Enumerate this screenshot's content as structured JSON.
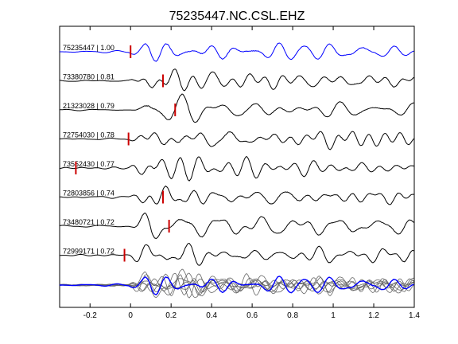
{
  "chart_data": {
    "type": "line",
    "title": "75235447.NC.CSL.EHZ",
    "xlabel": "",
    "ylabel": "",
    "xlim": [
      -0.35,
      1.4
    ],
    "xticks": [
      -0.2,
      0,
      0.2,
      0.4,
      0.6,
      0.8,
      1,
      1.2,
      1.4
    ],
    "xtick_labels": [
      "-0.2",
      "0",
      "0.2",
      "0.4",
      "0.6",
      "0.8",
      "1",
      "1.2",
      "1.4"
    ],
    "grid": false,
    "traces": [
      {
        "label": "75235447 | 1.00",
        "pick_time": 0.0,
        "color": "#0000ff"
      },
      {
        "label": "73380780 | 0.81",
        "pick_time": 0.16,
        "color": "#000000"
      },
      {
        "label": "21323028 | 0.79",
        "pick_time": 0.22,
        "color": "#000000"
      },
      {
        "label": "72754030 | 0.78",
        "pick_time": -0.01,
        "color": "#000000"
      },
      {
        "label": "73552430 | 0.77",
        "pick_time": -0.27,
        "color": "#000000"
      },
      {
        "label": "72803856 | 0.74",
        "pick_time": 0.16,
        "color": "#000000"
      },
      {
        "label": "73480721 | 0.72",
        "pick_time": 0.19,
        "color": "#000000"
      },
      {
        "label": "72999171 | 0.72",
        "pick_time": -0.03,
        "color": "#000000"
      }
    ],
    "stack": {
      "reference_color": "#0000ff",
      "overlay_color": "#666666"
    },
    "pick_color": "#cc0000"
  }
}
